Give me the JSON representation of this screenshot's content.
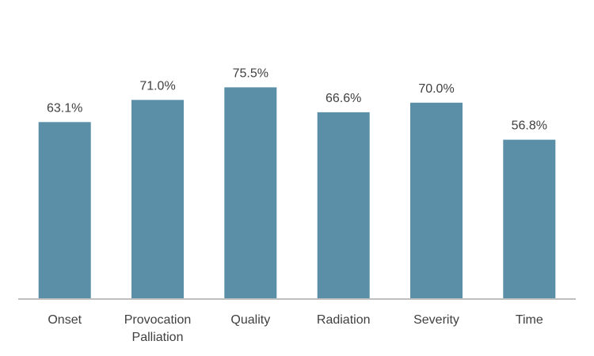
{
  "chart_data": {
    "type": "bar",
    "categories": [
      [
        "Onset"
      ],
      [
        "Provocation",
        "Palliation"
      ],
      [
        "Quality"
      ],
      [
        "Radiation"
      ],
      [
        "Severity"
      ],
      [
        "Time"
      ]
    ],
    "values": [
      63.1,
      71.0,
      75.5,
      66.6,
      70.0,
      56.8
    ],
    "data_labels": [
      "63.1%",
      "71.0%",
      "75.5%",
      "66.6%",
      "70.0%",
      "56.8%"
    ],
    "title": "",
    "xlabel": "",
    "ylabel": "",
    "ylim": [
      0,
      85
    ],
    "grid": false,
    "legend": "none",
    "colors": {
      "bar": "#5b8fa8",
      "axis": "#bfbfbf",
      "text": "#404040"
    }
  }
}
